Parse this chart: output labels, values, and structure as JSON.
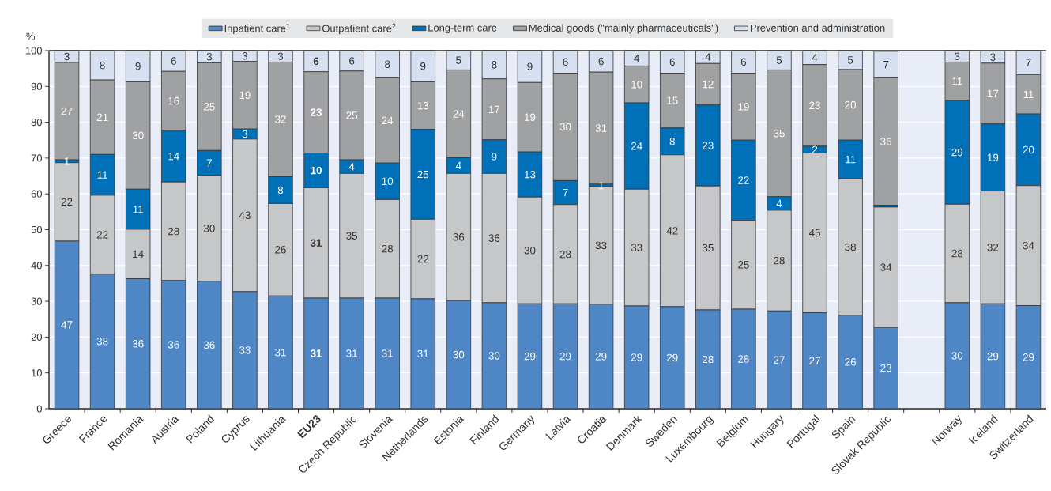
{
  "chart_data": {
    "type": "bar",
    "stacked": true,
    "ylabel": "%",
    "ylim": [
      0,
      100
    ],
    "yticks": [
      0,
      10,
      20,
      30,
      40,
      50,
      60,
      70,
      80,
      90,
      100
    ],
    "grid": "y",
    "legend": "top",
    "categories": [
      "Greece",
      "France",
      "Romania",
      "Austria",
      "Poland",
      "Cyprus",
      "Lithuania",
      "**EU23**",
      "Czech Republic",
      "Slovenia",
      "Netherlands",
      "Estonia",
      "Finland",
      "Germany",
      "Latvia",
      "Croatia",
      "Denmark",
      "Sweden",
      "Luxembourg",
      "Belgium",
      "Hungary",
      "Portugal",
      "Spain",
      "Slovak Republic",
      null,
      "Norway",
      "Iceland",
      "Switzerland"
    ],
    "series": [
      {
        "name": "Inpatient care$^{1}$",
        "color": "#4f86c6",
        "values": [
          46.8,
          37.6,
          36.3,
          35.8,
          35.6,
          32.7,
          31.5,
          30.9,
          30.9,
          30.9,
          30.7,
          30.2,
          29.6,
          29.3,
          29.3,
          29.2,
          28.7,
          28.5,
          27.6,
          27.8,
          27.3,
          26.8,
          26.1,
          22.7,
          null,
          29.6,
          29.3,
          28.8
        ],
        "value_labels": [
          "47",
          "38",
          "36",
          "36",
          "36",
          "33",
          "31",
          "**31**",
          "31",
          "31",
          "31",
          "30",
          "30",
          "29",
          "29",
          "29",
          "29",
          "29",
          "28",
          "28",
          "27",
          "27",
          "26",
          "23",
          null,
          "30",
          "29",
          "29"
        ]
      },
      {
        "name": "Outpatient care$^{2}$",
        "color": "#c6c7c9",
        "values": [
          21.9,
          22.0,
          13.8,
          27.5,
          29.5,
          42.6,
          25.8,
          30.8,
          34.8,
          27.5,
          22.2,
          35.5,
          36.1,
          29.8,
          27.7,
          32.8,
          32.6,
          42.4,
          34.6,
          24.8,
          28.1,
          44.6,
          38.1,
          33.6,
          null,
          27.5,
          31.5,
          33.5
        ],
        "value_labels": [
          "22",
          "22",
          "14",
          "28",
          "30",
          "43",
          "26",
          "**31**",
          "35",
          "28",
          "22",
          "36",
          "36",
          "30",
          "28",
          "33",
          "33",
          "42",
          "35",
          "25",
          "28",
          "45",
          "38",
          "34",
          null,
          "28",
          "32",
          "34"
        ]
      },
      {
        "name": "Long-term care",
        "color": "#0070b8",
        "values": [
          0.8,
          11.4,
          11.2,
          14.4,
          7.0,
          2.8,
          7.5,
          9.7,
          3.8,
          10.2,
          25.1,
          4.4,
          9.4,
          12.6,
          6.7,
          0.7,
          24.1,
          7.5,
          22.6,
          22.4,
          3.8,
          1.9,
          10.8,
          0.5,
          null,
          29.0,
          18.7,
          20.0
        ],
        "value_labels": [
          "1",
          "11",
          "11",
          "14",
          "7",
          "3",
          "8",
          "**10**",
          "4",
          "10",
          "25",
          "4",
          "9",
          "13",
          "7",
          "1",
          "24",
          "8",
          "23",
          "22",
          "4",
          "2",
          "11",
          null,
          null,
          "29",
          "19",
          "20"
        ]
      },
      {
        "name": "Medical goods (\"mainly pharmaceuticals\")",
        "color": "#a0a1a3",
        "values": [
          27.2,
          20.8,
          30.0,
          16.5,
          24.5,
          18.9,
          32.0,
          22.7,
          24.8,
          23.8,
          13.3,
          24.5,
          17.0,
          19.4,
          30.0,
          31.3,
          10.3,
          15.3,
          11.6,
          18.7,
          35.4,
          22.8,
          19.7,
          35.6,
          null,
          10.7,
          17.0,
          11.0
        ],
        "value_labels": [
          "27",
          "21",
          "30",
          "16",
          "25",
          "19",
          "32",
          "**23**",
          "25",
          "24",
          "13",
          "24",
          "17",
          "19",
          "30",
          "31",
          "10",
          "15",
          "12",
          "19",
          "35",
          "23",
          "20",
          "36",
          null,
          "11",
          "17",
          "11"
        ]
      },
      {
        "name": "Prevention and administration",
        "color": "#d6e0f1",
        "values": [
          3.3,
          8.2,
          8.7,
          5.8,
          3.4,
          3.0,
          3.2,
          5.9,
          5.7,
          7.6,
          8.7,
          5.4,
          7.9,
          8.9,
          6.3,
          6.0,
          4.3,
          6.3,
          3.6,
          6.3,
          5.4,
          3.9,
          5.3,
          7.4,
          null,
          3.2,
          3.4,
          6.7
        ],
        "value_labels": [
          "3",
          "8",
          "9",
          "6",
          "3",
          "3",
          "3",
          "**6**",
          "6",
          "8",
          "9",
          "5",
          "8",
          "9",
          "6",
          "6",
          "4",
          "6",
          "4",
          "6",
          "5",
          "4",
          "5",
          "7",
          null,
          "3",
          "3",
          "7"
        ]
      }
    ]
  }
}
